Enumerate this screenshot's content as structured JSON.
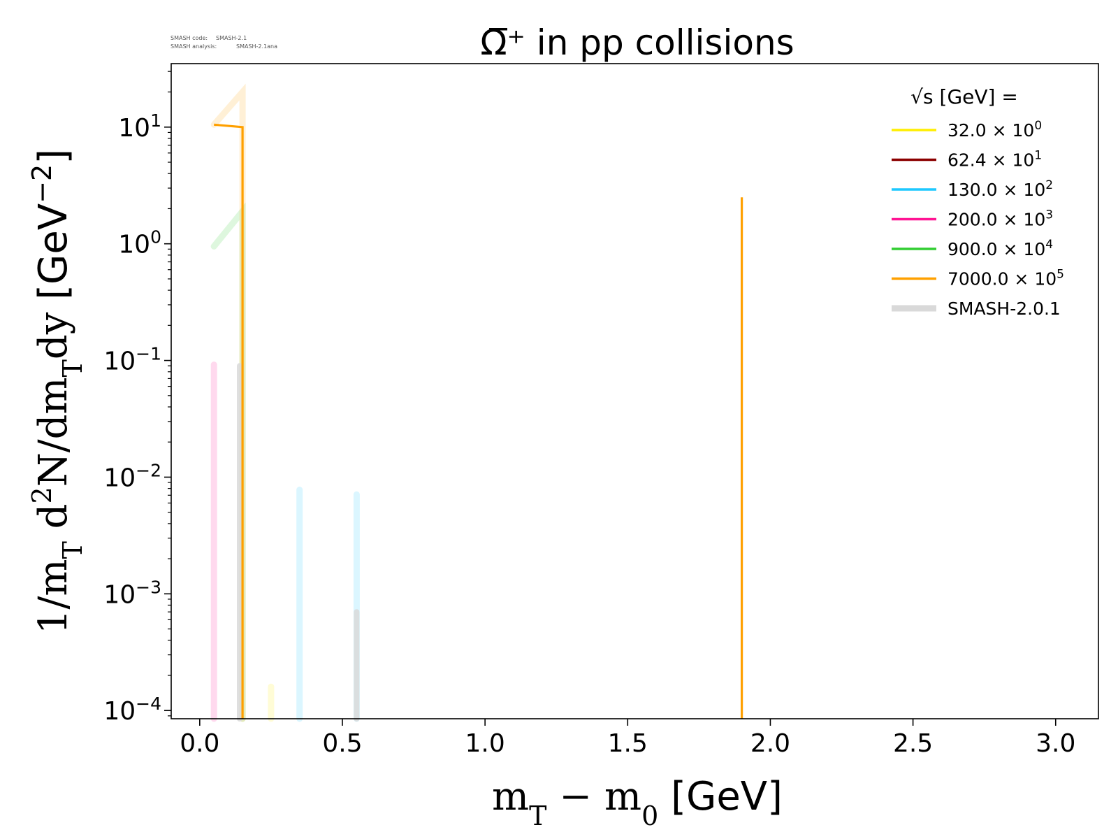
{
  "chart_data": {
    "type": "line",
    "title": "Ω̅⁺ in pp collisions",
    "watermark": {
      "line1_label": "SMASH code:",
      "line1_value": "SMASH-2.1",
      "line2_label": "SMASH analysis:",
      "line2_value": "SMASH-2.1ana"
    },
    "xlabel": "m_T − m_0 [GeV]",
    "ylabel": "1/m_T d²N/dm_Tdy [GeV⁻²]",
    "xlim": [
      -0.1,
      3.15
    ],
    "ylim": [
      8.5e-05,
      35
    ],
    "yscale": "log",
    "grid": false,
    "xticks": [
      "0.0",
      "0.5",
      "1.0",
      "1.5",
      "2.0",
      "2.5",
      "3.0"
    ],
    "yticks": [
      "10^-4",
      "10^-3",
      "10^-2",
      "10^-1",
      "10^0",
      "10^1"
    ],
    "legend": {
      "placement": "top-right",
      "title": "√s [GeV] =",
      "entries": [
        {
          "label": "32.0 × 10^0",
          "color": "#ffee00"
        },
        {
          "label": "62.4 × 10^1",
          "color": "#8b0000"
        },
        {
          "label": "130.0 × 10^2",
          "color": "#1ec8ff"
        },
        {
          "label": "200.0 × 10^3",
          "color": "#ff1493"
        },
        {
          "label": "900.0 × 10^4",
          "color": "#32cd32"
        },
        {
          "label": "7000.0 × 10^5",
          "color": "#ffa000"
        },
        {
          "label": "SMASH-2.0.1",
          "color": "#d9d9d9"
        }
      ]
    },
    "series": [
      {
        "name": "32.0 × 10^0",
        "color": "#ffee00",
        "kind": "smash-2.1",
        "points": [
          [
            0.25,
            0.00016
          ],
          [
            0.25,
            1e-05
          ]
        ]
      },
      {
        "name": "130.0 × 10^2",
        "color": "#1ec8ff",
        "kind": "smash-2.1",
        "points": [
          [
            0.35,
            0.0078
          ],
          [
            0.35,
            1e-05
          ]
        ]
      },
      {
        "name": "130.0 × 10^2",
        "color": "#1ec8ff",
        "kind": "smash-2.1",
        "points": [
          [
            0.55,
            0.0071
          ],
          [
            0.55,
            1e-05
          ]
        ]
      },
      {
        "name": "200.0 × 10^3",
        "color": "#ff1493",
        "kind": "smash-2.1",
        "points": [
          [
            0.05,
            0.092
          ],
          [
            0.05,
            1e-05
          ]
        ]
      },
      {
        "name": "900.0 × 10^4",
        "color": "#32cd32",
        "kind": "smash-2.1",
        "points": [
          [
            0.05,
            0.95
          ],
          [
            0.15,
            1.9
          ],
          [
            0.15,
            1e-05
          ]
        ]
      },
      {
        "name": "7000.0 × 10^5",
        "color": "#ffa000",
        "kind": "smash-2.1",
        "points": [
          [
            0.05,
            10.5
          ],
          [
            0.15,
            20
          ],
          [
            0.15,
            1e-05
          ]
        ]
      },
      {
        "name": "7000.0 × 10^5",
        "color": "#ffa000",
        "kind": "smash-2.0.1",
        "points": [
          [
            0.05,
            10.5
          ],
          [
            0.15,
            10
          ],
          [
            0.15,
            1e-05
          ]
        ]
      },
      {
        "name": "7000.0 × 10^5",
        "color": "#ffa000",
        "kind": "smash-2.0.1",
        "points": [
          [
            1.9,
            2.5
          ],
          [
            1.9,
            1e-05
          ]
        ]
      },
      {
        "name": "SMASH-2.0.1",
        "color": "#d9d9d9",
        "kind": "smash-2.0.1-grey",
        "points": [
          [
            0.14,
            0.09
          ],
          [
            0.14,
            1e-05
          ]
        ]
      },
      {
        "name": "SMASH-2.0.1",
        "color": "#d9d9d9",
        "kind": "smash-2.0.1-grey",
        "points": [
          [
            0.55,
            0.0007
          ],
          [
            0.55,
            1e-05
          ]
        ]
      }
    ]
  }
}
